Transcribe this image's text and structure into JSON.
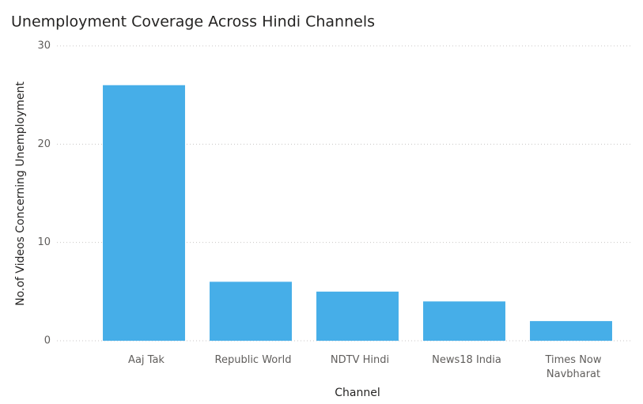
{
  "chart_data": {
    "type": "bar",
    "title": "Unemployment Coverage Across Hindi Channels",
    "x_label": "Channel",
    "y_label": "No.of Videos Concerning Unemployment",
    "categories": [
      "Aaj Tak",
      "Republic World",
      "NDTV Hindi",
      "News18 India",
      "Times Now Navbharat"
    ],
    "values": [
      26,
      6,
      5,
      4,
      2
    ],
    "color": "#46aee8",
    "ylim": [
      0,
      30
    ],
    "yticks": [
      0,
      10,
      20,
      30
    ],
    "grid": true
  }
}
